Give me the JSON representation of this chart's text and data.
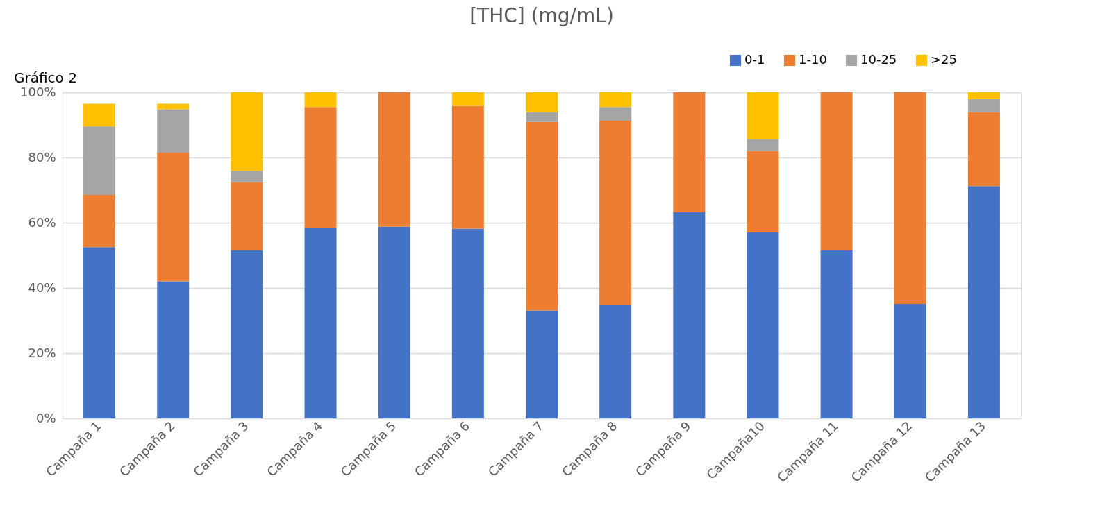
{
  "chart_data": {
    "type": "bar",
    "title": "[THC] (mg/mL)",
    "stacked": true,
    "categories": [
      "Campaña 1",
      "Campaña 2",
      "Campaña 3",
      "Campaña 4",
      "Campaña 5",
      "Campaña 6",
      "Campaña 7",
      "Campaña 8",
      "Campaña 9",
      "Campaña10",
      "Campaña 11",
      "Campaña 12",
      "Campaña 13"
    ],
    "series": [
      {
        "name": "0-1",
        "color": "#4472c4",
        "values": [
          52.5,
          42,
          51.6,
          58.5,
          58.8,
          58.2,
          33.1,
          34.7,
          63.2,
          57.0,
          51.5,
          35.1,
          71.2
        ]
      },
      {
        "name": "1-10",
        "color": "#ed7d31",
        "values": [
          16,
          39.5,
          20.8,
          37,
          41.2,
          37.6,
          57.8,
          56.6,
          36.8,
          25.0,
          48.5,
          64.9,
          22.7
        ]
      },
      {
        "name": "10-25",
        "color": "#a5a5a5",
        "values": [
          21,
          13.3,
          3.5,
          0,
          0,
          0,
          3.0,
          4.2,
          0,
          3.7,
          0,
          0,
          4.0
        ]
      },
      {
        "name": ">25",
        "color": "#ffc000",
        "values": [
          7,
          1.7,
          24.1,
          4.5,
          0,
          4.2,
          6.1,
          4.5,
          0,
          14.3,
          0,
          0,
          2.1
        ]
      }
    ],
    "ylim": [
      0,
      100
    ],
    "yticks": [
      {
        "value": 0,
        "label": "0%"
      },
      {
        "value": 20,
        "label": "20%"
      },
      {
        "value": 40,
        "label": "40%"
      },
      {
        "value": 60,
        "label": "60%"
      },
      {
        "value": 80,
        "label": "80%"
      },
      {
        "value": 100,
        "label": "100%"
      }
    ],
    "grid": "y",
    "legend": "top right",
    "annotations": [
      "Gráfico 2"
    ]
  }
}
